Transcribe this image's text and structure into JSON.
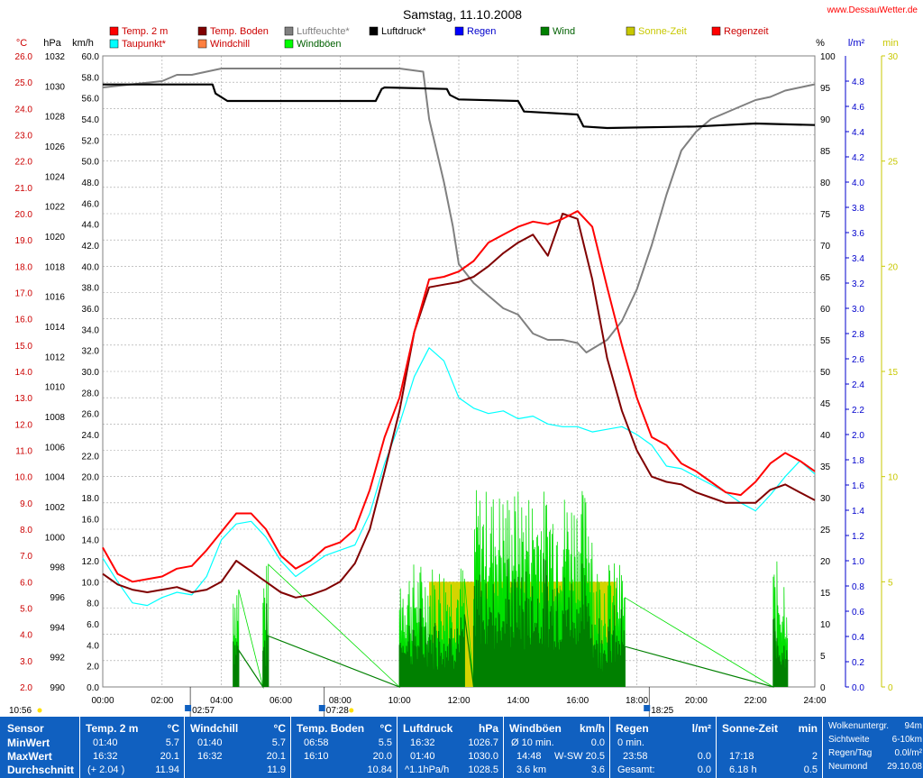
{
  "site": "www.DessauWetter.de",
  "chart_data": {
    "type": "line",
    "title": "Samstag, 11.10.2008",
    "x_ticks": [
      "00:00",
      "02:00",
      "04:00",
      "06:00",
      "08:00",
      "10:00",
      "12:00",
      "14:00",
      "16:00",
      "18:00",
      "20:00",
      "22:00",
      "24:00"
    ],
    "x_range_hours": [
      0,
      24
    ],
    "axes": {
      "temp_c": {
        "label": "°C",
        "range": [
          2,
          26
        ],
        "step": 1,
        "color": "#cc0000"
      },
      "pressure_hpa": {
        "label": "hPa",
        "range": [
          990,
          1032
        ],
        "step": 2,
        "color": "#000000"
      },
      "wind_kmh": {
        "label": "km/h",
        "range": [
          0,
          60
        ],
        "step": 2,
        "color": "#000000"
      },
      "humidity_pct": {
        "label": "%",
        "range": [
          0,
          100
        ],
        "step": 5,
        "color": "#000000"
      },
      "rain_lm2": {
        "label": "l/m²",
        "range": [
          0,
          5
        ],
        "step": 0.2,
        "color": "#0000cc"
      },
      "sun_min": {
        "label": "min",
        "range": [
          0,
          30
        ],
        "step": 5,
        "color": "#c8c800"
      }
    },
    "legend": [
      {
        "label": "Temp. 2 m",
        "color": "#ff0000"
      },
      {
        "label": "Temp. Boden",
        "color": "#800000"
      },
      {
        "label": "Luftfeuchte*",
        "color": "#808080"
      },
      {
        "label": "Luftdruck*",
        "color": "#000000"
      },
      {
        "label": "Regen",
        "color": "#0000ff"
      },
      {
        "label": "Wind",
        "color": "#008000"
      },
      {
        "label": "Sonne-Zeit",
        "color": "#c8c800"
      },
      {
        "label": "Regenzeit",
        "color": "#ff0000"
      },
      {
        "label": "Taupunkt*",
        "color": "#00ffff"
      },
      {
        "label": "Windchill",
        "color": "#ff8040"
      },
      {
        "label": "Windböen",
        "color": "#00ff00"
      }
    ],
    "series": [
      {
        "name": "Temp. 2 m",
        "axis": "temp_c",
        "color": "#ff0000",
        "x": [
          0,
          0.5,
          1,
          1.5,
          2,
          2.5,
          3,
          3.5,
          4,
          4.5,
          5,
          5.5,
          6,
          6.5,
          7,
          7.5,
          8,
          8.5,
          9,
          9.5,
          10,
          10.5,
          11,
          11.5,
          12,
          12.5,
          13,
          13.5,
          14,
          14.5,
          15,
          15.5,
          16,
          16.5,
          17,
          17.5,
          18,
          18.5,
          19,
          19.5,
          20,
          20.5,
          21,
          21.5,
          22,
          22.5,
          23,
          23.5,
          24
        ],
        "y": [
          7.3,
          6.3,
          6.0,
          6.1,
          6.2,
          6.5,
          6.6,
          7.2,
          7.9,
          8.6,
          8.6,
          8.0,
          7.0,
          6.5,
          6.8,
          7.3,
          7.5,
          8.0,
          9.5,
          11.5,
          13.0,
          15.5,
          17.5,
          17.6,
          17.8,
          18.2,
          18.9,
          19.2,
          19.5,
          19.7,
          19.6,
          19.8,
          20.1,
          19.5,
          17.2,
          15.0,
          13.0,
          11.5,
          11.2,
          10.5,
          10.2,
          9.8,
          9.4,
          9.3,
          9.8,
          10.5,
          10.9,
          10.6,
          10.2
        ]
      },
      {
        "name": "Temp. Boden",
        "axis": "temp_c",
        "color": "#800000",
        "x": [
          0,
          0.5,
          1,
          1.5,
          2,
          2.5,
          3,
          3.5,
          4,
          4.5,
          5,
          5.5,
          6,
          6.5,
          7,
          7.5,
          8,
          8.5,
          9,
          9.5,
          10,
          10.5,
          11,
          11.5,
          12,
          12.5,
          13,
          13.5,
          14,
          14.5,
          15,
          15.5,
          16,
          16.5,
          17,
          17.5,
          18,
          18.5,
          19,
          19.5,
          20,
          20.5,
          21,
          21.5,
          22,
          22.5,
          23,
          23.5,
          24
        ],
        "y": [
          6.3,
          5.9,
          5.7,
          5.6,
          5.7,
          5.8,
          5.6,
          5.7,
          6.0,
          6.8,
          6.4,
          6.0,
          5.6,
          5.4,
          5.5,
          5.7,
          6.0,
          6.7,
          8.0,
          10.2,
          12.5,
          15.5,
          17.2,
          17.3,
          17.4,
          17.6,
          18.0,
          18.5,
          18.9,
          19.2,
          18.4,
          20.0,
          19.8,
          17.5,
          14.5,
          12.5,
          11.0,
          10.0,
          9.8,
          9.7,
          9.4,
          9.2,
          9.0,
          9.0,
          9.0,
          9.5,
          9.7,
          9.4,
          9.1
        ]
      },
      {
        "name": "Taupunkt*",
        "axis": "temp_c",
        "color": "#00ffff",
        "x": [
          0,
          0.5,
          1,
          1.5,
          2,
          2.5,
          3,
          3.5,
          4,
          4.5,
          5,
          5.5,
          6,
          6.5,
          7,
          7.5,
          8,
          8.5,
          9,
          9.5,
          10,
          10.5,
          11,
          11.5,
          12,
          12.5,
          13,
          13.5,
          14,
          14.5,
          15,
          15.5,
          16,
          16.5,
          17,
          17.5,
          18,
          18.5,
          19,
          19.5,
          20,
          20.5,
          21,
          21.5,
          22,
          22.5,
          23,
          23.5,
          24
        ],
        "y": [
          6.9,
          6.0,
          5.2,
          5.1,
          5.4,
          5.6,
          5.5,
          6.2,
          7.6,
          8.2,
          8.3,
          7.7,
          6.8,
          6.2,
          6.6,
          7.0,
          7.2,
          7.4,
          8.6,
          10.5,
          12.0,
          13.8,
          14.9,
          14.4,
          13.0,
          12.6,
          12.4,
          12.5,
          12.2,
          12.3,
          12.0,
          11.9,
          11.9,
          11.7,
          11.8,
          11.9,
          11.6,
          11.2,
          10.4,
          10.3,
          10.0,
          9.7,
          9.4,
          9.0,
          8.7,
          9.3,
          10.0,
          10.6,
          10.1
        ]
      },
      {
        "name": "Luftdruck*",
        "axis": "pressure_hpa",
        "color": "#000000",
        "x": [
          0,
          3.7,
          3.8,
          4.2,
          9.2,
          9.4,
          9.5,
          11.6,
          11.7,
          12,
          14,
          14.2,
          16,
          16.2,
          17,
          20,
          22,
          24
        ],
        "y": [
          1030.1,
          1030.1,
          1029.5,
          1029.0,
          1029.0,
          1029.8,
          1029.9,
          1029.8,
          1029.4,
          1029.1,
          1029.0,
          1028.3,
          1028.1,
          1027.3,
          1027.2,
          1027.3,
          1027.5,
          1027.4
        ]
      },
      {
        "name": "Luftfeuchte*",
        "axis": "humidity_pct",
        "color": "#808080",
        "x": [
          0,
          1,
          2,
          2.5,
          3,
          3.5,
          4,
          5,
          6,
          7,
          8,
          9,
          10,
          10.8,
          11,
          11.5,
          11.8,
          12,
          12.5,
          13,
          13.5,
          14,
          14.5,
          15,
          15.5,
          16,
          16.3,
          17,
          17.5,
          18,
          18.5,
          19,
          19.5,
          20,
          20.5,
          21,
          21.5,
          22,
          22.5,
          23,
          23.5,
          24
        ],
        "y": [
          95,
          95.5,
          96,
          97,
          97,
          97.5,
          98,
          98,
          98,
          98,
          98,
          98,
          98,
          97.5,
          90,
          80,
          73,
          67,
          64,
          62,
          60,
          59,
          56,
          55,
          55,
          54.5,
          53,
          55,
          58,
          63,
          70,
          78,
          85,
          88,
          90,
          91,
          92,
          93,
          93.5,
          94.5,
          95,
          95.5
        ]
      }
    ],
    "wind_bursts": [
      [
        4.4,
        4.6
      ],
      [
        5.4,
        5.6
      ],
      [
        10,
        12.2
      ],
      [
        12.5,
        17.6
      ],
      [
        22.6,
        23.1
      ]
    ],
    "sun_bars": {
      "sun_min": 5,
      "intervals": [
        [
          11.0,
          15.5
        ],
        [
          15.6,
          17.3
        ]
      ]
    },
    "sunrise": "07:28",
    "sunset": "18:25",
    "moonrise": "18:25",
    "moonset": "02:57",
    "time_markers": [
      "10:56",
      "02:57",
      "07:28",
      "18:25"
    ]
  },
  "panel": {
    "sensor": {
      "header": "Sensor",
      "rows": [
        "MinWert",
        "MaxWert",
        "Durchschnitt"
      ]
    },
    "temp": {
      "header": "Temp. 2 m",
      "unit": "°C",
      "rows": [
        [
          "01:40",
          "5.7"
        ],
        [
          "16:32",
          "20.1"
        ],
        [
          "(+ 2.04 )",
          "11.94"
        ]
      ]
    },
    "windchill": {
      "header": "Windchill",
      "unit": "°C",
      "rows": [
        [
          "01:40",
          "5.7"
        ],
        [
          "16:32",
          "20.1"
        ],
        [
          "",
          "11.9"
        ]
      ]
    },
    "boden": {
      "header": "Temp. Boden",
      "unit": "°C",
      "rows": [
        [
          "06:58",
          "5.5"
        ],
        [
          "16:10",
          "20.0"
        ],
        [
          "",
          "10.84"
        ]
      ]
    },
    "druck": {
      "header": "Luftdruck",
      "unit": "hPa",
      "rows": [
        [
          "16:32",
          "1026.7"
        ],
        [
          "01:40",
          "1030.0"
        ],
        [
          "^1.1hPa/h",
          "1028.5"
        ]
      ]
    },
    "boeen": {
      "header": "Windböen",
      "unit": "km/h",
      "rows": [
        [
          "Ø 10 min.",
          "",
          "0.0"
        ],
        [
          "14:48",
          "W-SW",
          "20.5"
        ],
        [
          "3.6 km",
          "",
          "3.6"
        ]
      ]
    },
    "regen": {
      "header": "Regen",
      "unit": "l/m²",
      "rows": [
        [
          "0 min.",
          ""
        ],
        [
          "23:58",
          "0.0"
        ],
        [
          "Gesamt:",
          "0.0"
        ]
      ]
    },
    "sonne": {
      "header": "Sonne-Zeit",
      "unit": "min",
      "rows": [
        [
          "",
          ""
        ],
        [
          "17:18",
          "2"
        ],
        [
          "6.18 h",
          "0.5"
        ]
      ]
    },
    "misc": {
      "rows": [
        [
          "Wolkenuntergr.",
          "94m"
        ],
        [
          "Sichtweite",
          "6-10km"
        ],
        [
          "Regen/Tag",
          "0.0l/m²"
        ],
        [
          "Neumond",
          "29.10.08"
        ]
      ]
    }
  }
}
